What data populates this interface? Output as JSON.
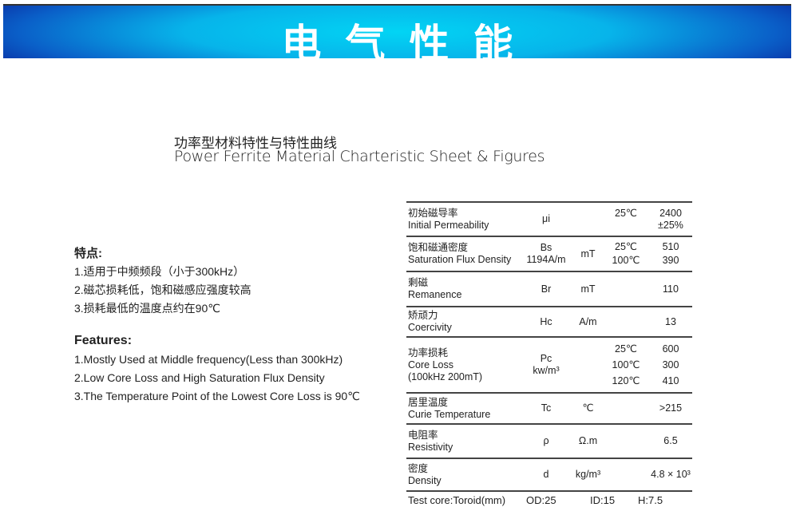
{
  "banner": {
    "title": "电气性能"
  },
  "heading": {
    "cn": "功率型材料特性与特性曲线",
    "en": "Power Ferrite Material Charteristic Sheet & Figures"
  },
  "features_cn": {
    "heading": "特点:",
    "items": [
      "1.适用于中频频段（小于300kHz）",
      "2.磁芯损耗低，饱和磁感应强度较高",
      "3.损耗最低的温度点约在90℃"
    ]
  },
  "features_en": {
    "heading": "Features:",
    "items": [
      "1.Mostly Used at Middle frequency(Less than 300kHz)",
      "2.Low Core Loss and High Saturation Flux Density",
      "3.The Temperature Point of the Lowest Core Loss is 90℃"
    ]
  },
  "table": {
    "rows": [
      {
        "cn": "初始磁导率",
        "en": "Initial Permeability",
        "symbol": "μi",
        "unit": "",
        "temps": [
          "25℃"
        ],
        "values": [
          "2400\n±25%"
        ]
      },
      {
        "cn": "饱和磁通密度",
        "en": "Saturation Flux Density",
        "symbol": "Bs\n1194A/m",
        "unit": "mT",
        "temps": [
          "25℃",
          "100℃"
        ],
        "values": [
          "510",
          "390"
        ]
      },
      {
        "cn": "剩磁",
        "en": "Remanence",
        "symbol": "Br",
        "unit": "mT",
        "temps": [],
        "values": [
          "110"
        ]
      },
      {
        "cn": "矫顽力",
        "en": "Coercivity",
        "symbol": "Hc",
        "unit": "A/m",
        "temps": [],
        "values": [
          "13"
        ]
      },
      {
        "cn": "功率损耗",
        "en": "Core Loss\n(100kHz 200mT)",
        "symbol": "Pc\nkw/m³",
        "unit": "",
        "temps": [
          "25℃",
          "100℃",
          "120℃"
        ],
        "values": [
          "600",
          "300",
          "410"
        ]
      },
      {
        "cn": "居里温度",
        "en": "Curie Temperature",
        "symbol": "Tc",
        "unit": "℃",
        "temps": [],
        "values": [
          ">215"
        ]
      },
      {
        "cn": "电阻率",
        "en": "Resistivity",
        "symbol": "ρ",
        "unit": "Ω.m",
        "temps": [],
        "values": [
          "6.5"
        ]
      },
      {
        "cn": "密度",
        "en": "Density",
        "symbol": "d",
        "unit": "kg/m³",
        "temps": [],
        "values": [
          "4.8 × 10³"
        ]
      }
    ],
    "footer": {
      "label": "Test core:Toroid(mm)",
      "od": "OD:25",
      "id": "ID:15",
      "h": "H:7.5"
    }
  }
}
